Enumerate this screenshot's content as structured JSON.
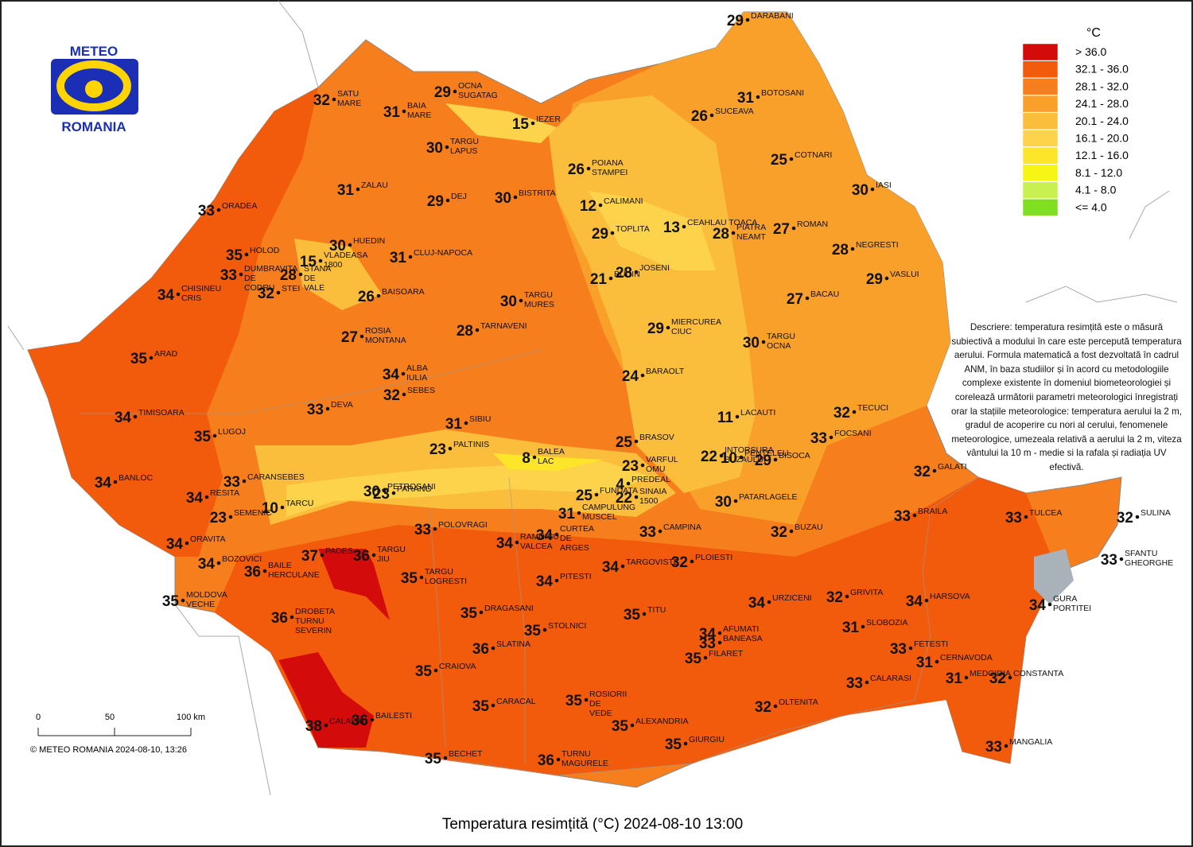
{
  "logo": {
    "top": "METEO",
    "bottom": "ROMANIA"
  },
  "legend": {
    "title": "°C",
    "items": [
      {
        "label": "> 36.0",
        "color": "#d40b0b"
      },
      {
        "label": "32.1 - 36.0",
        "color": "#f25a0c"
      },
      {
        "label": "28.1 - 32.0",
        "color": "#f67e1c"
      },
      {
        "label": "24.1 - 28.0",
        "color": "#f9a02a"
      },
      {
        "label": "20.1 - 24.0",
        "color": "#fbbd3c"
      },
      {
        "label": "16.1 - 20.0",
        "color": "#fcd34a"
      },
      {
        "label": "12.1 - 16.0",
        "color": "#fde62a"
      },
      {
        "label": "8.1 - 12.0",
        "color": "#f6f513"
      },
      {
        "label": "4.1 - 8.0",
        "color": "#c8f050"
      },
      {
        "label": "<= 4.0",
        "color": "#80e020"
      }
    ]
  },
  "description": "Descriere: temperatura resimțită este o măsură subiectivă a modului în care este percepută temperatura aerului. Formula matematică a fost dezvoltată în cadrul ANM, în baza studiilor și în acord cu metodologiile complexe existente în domeniul biometeorologiei și corelează următorii parametri meteorologici înregistrați orar la stațiile meteorologice: temperatura aerului la 2 m, gradul de acoperire cu nori al cerului, fenomenele meteorologice, umezeala relativă a aerului la 2 m, viteza vântului la 10 m - medie si la rafala și radiația UV efectivă.",
  "stations": [
    {
      "name": "DARABANI",
      "value": 29
    },
    {
      "name": "SATU MARE",
      "value": 32
    },
    {
      "name": "BAIA MARE",
      "value": 31
    },
    {
      "name": "OCNA SUGATAG",
      "value": 29
    },
    {
      "name": "IEZER",
      "value": 15
    },
    {
      "name": "BOTOSANI",
      "value": 31
    },
    {
      "name": "SUCEAVA",
      "value": 26
    },
    {
      "name": "TARGU LAPUS",
      "value": 30
    },
    {
      "name": "POIANA STAMPEI",
      "value": 26
    },
    {
      "name": "COTNARI",
      "value": 25
    },
    {
      "name": "ZALAU",
      "value": 31
    },
    {
      "name": "DEJ",
      "value": 29
    },
    {
      "name": "BISTRITA",
      "value": 30
    },
    {
      "name": "CALIMANI",
      "value": 12
    },
    {
      "name": "IASI",
      "value": 30
    },
    {
      "name": "ORADEA",
      "value": 33
    },
    {
      "name": "CEAHLAU TOACA",
      "value": 13
    },
    {
      "name": "TOPLITA",
      "value": 29
    },
    {
      "name": "PIATRA NEAMT",
      "value": 28
    },
    {
      "name": "ROMAN",
      "value": 27
    },
    {
      "name": "NEGRESTI",
      "value": 28
    },
    {
      "name": "HUEDIN",
      "value": 30
    },
    {
      "name": "HOLOD",
      "value": 35
    },
    {
      "name": "CLUJ-NAPOCA",
      "value": 31
    },
    {
      "name": "STANA DE VALE",
      "value": 28
    },
    {
      "name": "VLADEASA 1800",
      "value": 15
    },
    {
      "name": "DUMBRAVITA DE CODRU",
      "value": 33
    },
    {
      "name": "STEI",
      "value": 32
    },
    {
      "name": "CHISINEU CRIS",
      "value": 34
    },
    {
      "name": "VASLUI",
      "value": 29
    },
    {
      "name": "BUCIN",
      "value": 21
    },
    {
      "name": "JOSENI",
      "value": 28
    },
    {
      "name": "BAISOARA",
      "value": 26
    },
    {
      "name": "TARGU MURES",
      "value": 30
    },
    {
      "name": "BACAU",
      "value": 27
    },
    {
      "name": "TARNAVENI",
      "value": 28
    },
    {
      "name": "MIERCUREA CIUC",
      "value": 29
    },
    {
      "name": "ROSIA MONTANA",
      "value": 27
    },
    {
      "name": "TARGU OCNA",
      "value": 30
    },
    {
      "name": "ARAD",
      "value": 35
    },
    {
      "name": "ALBA IULIA",
      "value": 34
    },
    {
      "name": "SEBES",
      "value": 32
    },
    {
      "name": "BARAOLT",
      "value": 24
    },
    {
      "name": "DEVA",
      "value": 33
    },
    {
      "name": "TIMISOARA",
      "value": 34
    },
    {
      "name": "SIBIU",
      "value": 31
    },
    {
      "name": "LACAUTI",
      "value": 11
    },
    {
      "name": "TECUCI",
      "value": 32
    },
    {
      "name": "LUGOJ",
      "value": 35
    },
    {
      "name": "BRASOV",
      "value": 25
    },
    {
      "name": "PALTINIS",
      "value": 23
    },
    {
      "name": "BALEA LAC",
      "value": 8
    },
    {
      "name": "INTORSURA BUZAULUI",
      "value": 22
    },
    {
      "name": "PENTELEU",
      "value": 10
    },
    {
      "name": "BISOCA",
      "value": 29
    },
    {
      "name": "FOCSANI",
      "value": 33
    },
    {
      "name": "VARFUL OMU",
      "value": 23
    },
    {
      "name": "PREDEAL",
      "value": 4
    },
    {
      "name": "FUNDATA",
      "value": 25
    },
    {
      "name": "SINAIA 1500",
      "value": 22
    },
    {
      "name": "PETROSANI",
      "value": 30
    },
    {
      "name": "PARANG",
      "value": 23
    },
    {
      "name": "BANLOC",
      "value": 34
    },
    {
      "name": "CARANSEBES",
      "value": 33
    },
    {
      "name": "RESITA",
      "value": 34
    },
    {
      "name": "GALATI",
      "value": 32
    },
    {
      "name": "TARCU",
      "value": 10
    },
    {
      "name": "SEMENIC",
      "value": 23
    },
    {
      "name": "CAMPULUNG MUSCEL",
      "value": 31
    },
    {
      "name": "PATARLAGELE",
      "value": 30
    },
    {
      "name": "POLOVRAGI",
      "value": 33
    },
    {
      "name": "BRAILA",
      "value": 33
    },
    {
      "name": "TULCEA",
      "value": 33
    },
    {
      "name": "SULINA",
      "value": 32
    },
    {
      "name": "CAMPINA",
      "value": 33
    },
    {
      "name": "BUZAU",
      "value": 32
    },
    {
      "name": "ORAVITA",
      "value": 34
    },
    {
      "name": "RAMNICU VALCEA",
      "value": 34
    },
    {
      "name": "CURTEA DE ARGES",
      "value": 34
    },
    {
      "name": "PADES",
      "value": 37
    },
    {
      "name": "TARGU JIU",
      "value": 36
    },
    {
      "name": "BAILE HERCULANE",
      "value": 36
    },
    {
      "name": "BOZOVICI",
      "value": 34
    },
    {
      "name": "TARGU LOGRESTI",
      "value": 35
    },
    {
      "name": "TARGOVISTE",
      "value": 34
    },
    {
      "name": "PLOIESTI",
      "value": 32
    },
    {
      "name": "SFANTU GHEORGHE",
      "value": 33
    },
    {
      "name": "PITESTI",
      "value": 34
    },
    {
      "name": "MOLDOVA VECHE",
      "value": 35
    },
    {
      "name": "URZICENI",
      "value": 34
    },
    {
      "name": "GRIVITA",
      "value": 32
    },
    {
      "name": "HARSOVA",
      "value": 34
    },
    {
      "name": "GURA PORTITEI",
      "value": 34
    },
    {
      "name": "DROBETA TURNU SEVERIN",
      "value": 36
    },
    {
      "name": "DRAGASANI",
      "value": 35
    },
    {
      "name": "TITU",
      "value": 35
    },
    {
      "name": "SLOBOZIA",
      "value": 31
    },
    {
      "name": "STOLNICI",
      "value": 35
    },
    {
      "name": "AFUMATI",
      "value": 34
    },
    {
      "name": "BANEASA",
      "value": 33
    },
    {
      "name": "SLATINA",
      "value": 36
    },
    {
      "name": "FILARET",
      "value": 35
    },
    {
      "name": "FETESTI",
      "value": 33
    },
    {
      "name": "CERNAVODA",
      "value": 31
    },
    {
      "name": "CRAIOVA",
      "value": 35
    },
    {
      "name": "MEDGIDIA",
      "value": 31
    },
    {
      "name": "CONSTANTA",
      "value": 32
    },
    {
      "name": "CALARASI",
      "value": 33
    },
    {
      "name": "CARACAL",
      "value": 35
    },
    {
      "name": "ROSIORII DE VEDE",
      "value": 35
    },
    {
      "name": "OLTENITA",
      "value": 32
    },
    {
      "name": "CALAFAT",
      "value": 38
    },
    {
      "name": "BAILESTI",
      "value": 36
    },
    {
      "name": "ALEXANDRIA",
      "value": 35
    },
    {
      "name": "GIURGIU",
      "value": 35
    },
    {
      "name": "MANGALIA",
      "value": 33
    },
    {
      "name": "BECHET",
      "value": 35
    },
    {
      "name": "TURNU MAGURELE",
      "value": 36
    }
  ],
  "scale_bar": {
    "ticks": [
      "0",
      "50",
      "100 km"
    ]
  },
  "copyright": "© METEO ROMANIA 2024-08-10, 13:26",
  "title": "Temperatura resimțită (°C) 2024-08-10 13:00"
}
